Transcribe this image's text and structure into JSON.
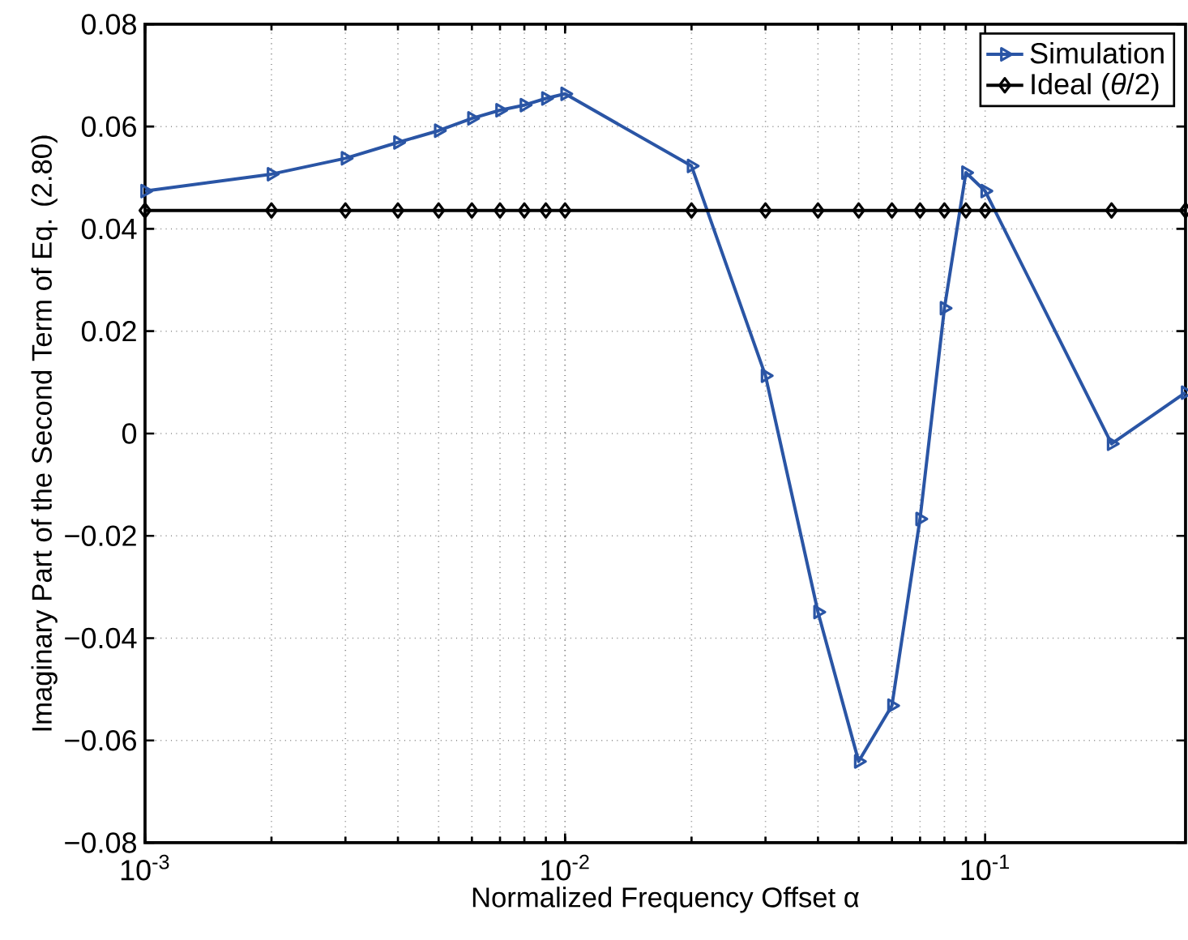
{
  "chart_data": {
    "type": "line",
    "xlabel": "Normalized Frequency Offset α",
    "ylabel": "Imaginary Part of the Second Term of Eq. (2.80)",
    "x": [
      0.001,
      0.002,
      0.003,
      0.004,
      0.005,
      0.006,
      0.007,
      0.008,
      0.009,
      0.01,
      0.02,
      0.03,
      0.04,
      0.05,
      0.06,
      0.07,
      0.08,
      0.09,
      0.1,
      0.2,
      0.3
    ],
    "series": [
      {
        "name": "Simulation",
        "color": "#2a55a5",
        "marker": "triangle",
        "values": [
          0.0474,
          0.0507,
          0.0538,
          0.0569,
          0.0592,
          0.0616,
          0.0632,
          0.0642,
          0.0655,
          0.0664,
          0.0523,
          0.0113,
          -0.0349,
          -0.0641,
          -0.0532,
          -0.0167,
          0.0245,
          0.051,
          0.0474,
          -0.002,
          0.008
        ]
      },
      {
        "name": "Ideal (*θ*/2)",
        "color": "#000000",
        "marker": "diamond",
        "values": [
          0.0436,
          0.0436,
          0.0436,
          0.0436,
          0.0436,
          0.0436,
          0.0436,
          0.0436,
          0.0436,
          0.0436,
          0.0436,
          0.0436,
          0.0436,
          0.0436,
          0.0436,
          0.0436,
          0.0436,
          0.0436,
          0.0436,
          0.0436,
          0.0436
        ]
      }
    ],
    "log": "x",
    "xlim": [
      0.001,
      0.3
    ],
    "xticks": [
      {
        "value": 0.001,
        "label": "10$^{-3}$"
      },
      {
        "value": 0.01,
        "label": "10$^{-2}$"
      },
      {
        "value": 0.1,
        "label": "10$^{-1}$"
      }
    ],
    "ylim": [
      -0.08,
      0.08
    ],
    "yticks": [
      {
        "value": -0.08,
        "label": "−0.08"
      },
      {
        "value": -0.06,
        "label": "−0.06"
      },
      {
        "value": -0.04,
        "label": "−0.04"
      },
      {
        "value": -0.02,
        "label": "−0.02"
      },
      0,
      0.02,
      0.04,
      0.06,
      0.08
    ],
    "grid": true,
    "legend": "top right",
    "line_style": "solid"
  }
}
